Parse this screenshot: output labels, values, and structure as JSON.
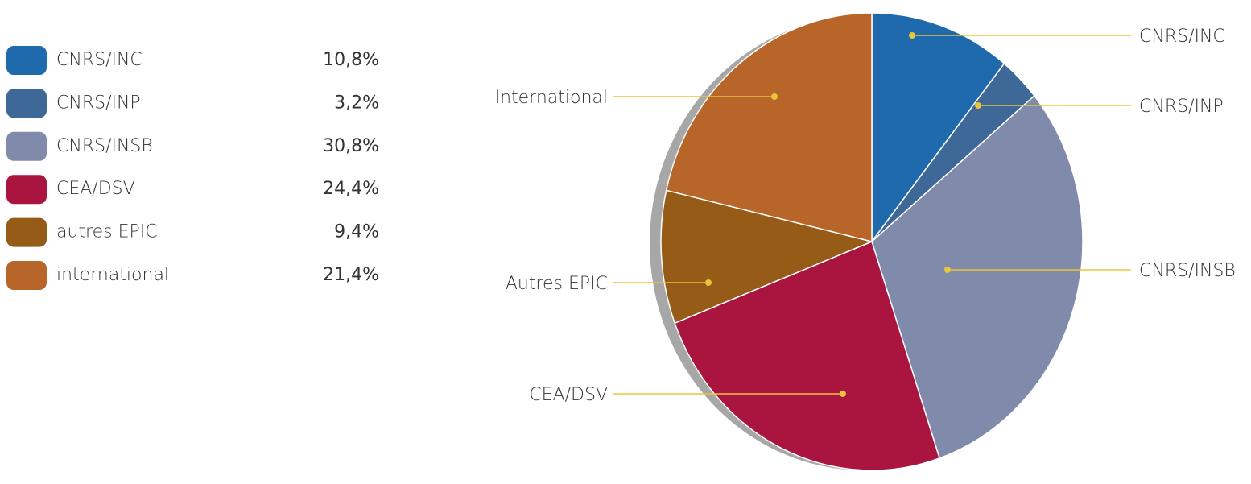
{
  "chart_data": {
    "type": "pie",
    "categories": [
      "CNRS/INC",
      "CNRS/INP",
      "CNRS/INSB",
      "CEA/DSV",
      "autres EPIC",
      "international"
    ],
    "values": [
      10.8,
      3.2,
      30.8,
      24.4,
      9.4,
      21.4
    ],
    "value_labels": [
      "10,8%",
      "3,2%",
      "30,8%",
      "24,4%",
      "9,4%",
      "21,4%"
    ],
    "slice_labels": [
      "CNRS/INC",
      "CNRS/INP",
      "CNRS/INSB",
      "CEA/DSV",
      "Autres EPIC",
      "International"
    ],
    "colors": [
      "#1f6aad",
      "#3d6897",
      "#808aab",
      "#aa1540",
      "#955b17",
      "#b8652a"
    ]
  }
}
